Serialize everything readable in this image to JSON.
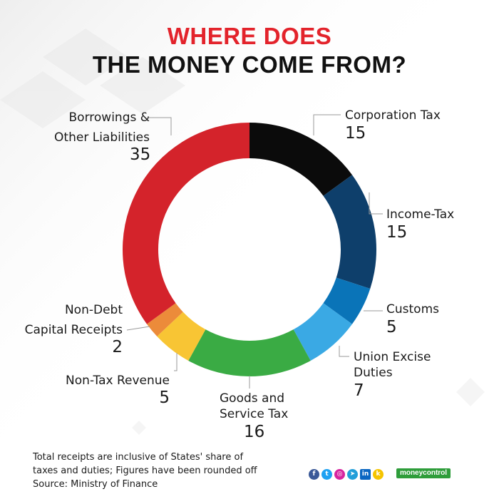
{
  "title": {
    "line1": "WHERE DOES",
    "line2": "THE MONEY COME FROM?"
  },
  "colors": {
    "title_accent": "#e3232b",
    "title_dark": "#111111",
    "corporation_tax": "#0b0b0b",
    "income_tax": "#0e3f6b",
    "customs": "#0a74b8",
    "union_excise": "#3aa9e4",
    "gst": "#3aab44",
    "non_tax": "#f8c534",
    "non_debt": "#ec8b3a",
    "borrowings": "#d4232b"
  },
  "chart_data": {
    "type": "pie",
    "donut": true,
    "title": "WHERE DOES THE MONEY COME FROM?",
    "unit": "",
    "slices": [
      {
        "label_line1": "Corporation Tax",
        "label_line2": "",
        "value": 15,
        "color": "#0b0b0b"
      },
      {
        "label_line1": "Income-Tax",
        "label_line2": "",
        "value": 15,
        "color": "#0e3f6b"
      },
      {
        "label_line1": "Customs",
        "label_line2": "",
        "value": 5,
        "color": "#0a74b8"
      },
      {
        "label_line1": "Union Excise",
        "label_line2": "Duties",
        "value": 7,
        "color": "#3aa9e4"
      },
      {
        "label_line1": "Goods and",
        "label_line2": "Service Tax",
        "value": 16,
        "color": "#3aab44"
      },
      {
        "label_line1": "Non-Tax Revenue",
        "label_line2": "",
        "value": 5,
        "color": "#f8c534"
      },
      {
        "label_line1": "Non-Debt",
        "label_line2": "Capital Receipts",
        "value": 2,
        "color": "#ec8b3a"
      },
      {
        "label_line1": "Borrowings &",
        "label_line2": "Other Liabilities",
        "value": 35,
        "color": "#d4232b"
      }
    ]
  },
  "footnote": {
    "line1": "Total receipts are inclusive of States' share of",
    "line2": "taxes and duties; Figures have been rounded off",
    "line3": "Source: Ministry of Finance"
  },
  "branding": {
    "logo_text": "moneycontrol",
    "social_icons": [
      "facebook-icon",
      "twitter-icon",
      "instagram-icon",
      "telegram-icon",
      "linkedin-icon",
      "koo-icon"
    ],
    "social_colors": [
      "#3b5998",
      "#1da1f2",
      "#d6249f",
      "#229ed9",
      "#0a66c2",
      "#f5c400"
    ]
  }
}
